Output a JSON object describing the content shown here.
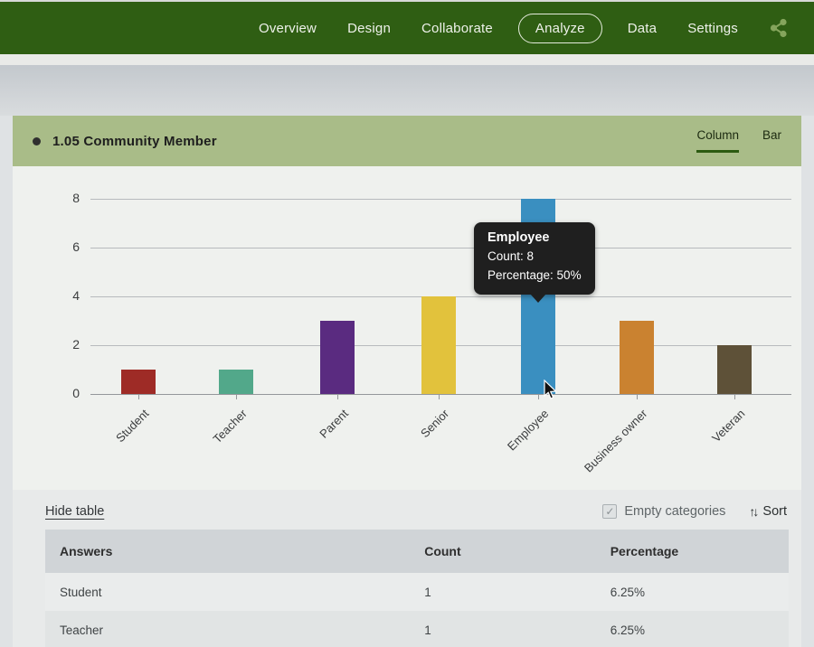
{
  "nav": {
    "items": [
      "Overview",
      "Design",
      "Collaborate",
      "Analyze",
      "Data",
      "Settings"
    ],
    "active": "Analyze"
  },
  "card": {
    "title": "1.05 Community Member",
    "view_toggle": {
      "options": [
        "Column",
        "Bar"
      ],
      "selected": "Column"
    }
  },
  "chart_data": {
    "type": "bar",
    "title": "1.05 Community Member",
    "categories": [
      "Student",
      "Teacher",
      "Parent",
      "Senior",
      "Employee",
      "Business owner",
      "Veteran"
    ],
    "values": [
      1,
      1,
      3,
      4,
      8,
      3,
      2
    ],
    "colors": [
      "#9e2b26",
      "#52a88a",
      "#5a2b80",
      "#e2c23c",
      "#3a8fc0",
      "#ca8230",
      "#5e5138"
    ],
    "xlabel": "",
    "ylabel": "",
    "yticks": [
      0,
      2,
      4,
      6,
      8
    ],
    "ylim": [
      0,
      8.6
    ],
    "grid": true,
    "legend": false
  },
  "tooltip": {
    "title": "Employee",
    "count_line": "Count: 8",
    "percentage_line": "Percentage: 50%"
  },
  "controls": {
    "hide_table": "Hide table",
    "empty_categories": "Empty categories",
    "empty_categories_checked": true,
    "checkmark": "✓",
    "sort_label": "Sort",
    "sort_arrows": "↑↓"
  },
  "table": {
    "headers": [
      "Answers",
      "Count",
      "Percentage"
    ],
    "rows": [
      {
        "answer": "Student",
        "count": "1",
        "percentage": "6.25%"
      },
      {
        "answer": "Teacher",
        "count": "1",
        "percentage": "6.25%"
      }
    ]
  },
  "colors": {
    "nav_green": "#2f5e13",
    "header_sage": "#a9bc88",
    "tooltip_bg": "#1f1f1f",
    "accent_underline": "#2c5a11"
  }
}
